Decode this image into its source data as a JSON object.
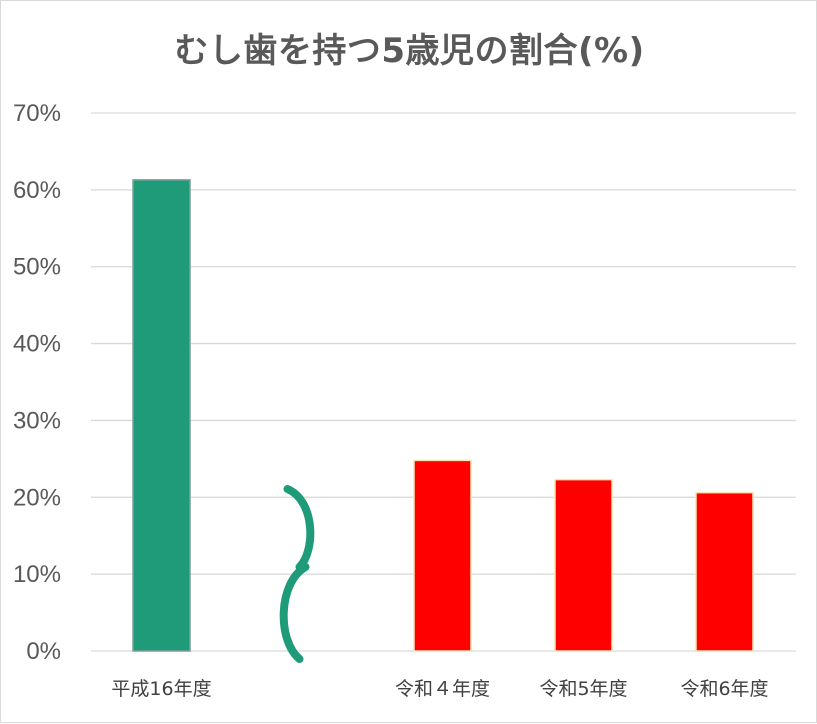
{
  "chart_data": {
    "type": "bar",
    "title": "むし歯を持つ5歳児の割合(%)",
    "xlabel": "",
    "ylabel": "",
    "ylim": [
      0,
      70
    ],
    "yticks": [
      0,
      10,
      20,
      30,
      40,
      50,
      60,
      70
    ],
    "ytick_labels": [
      "0%",
      "10%",
      "20%",
      "30%",
      "40%",
      "50%",
      "60%",
      "70%"
    ],
    "grid": true,
    "legend": "none",
    "axis_break_between": [
      "平成16年度",
      "令和４年度"
    ],
    "categories": [
      "平成16年度",
      "令和４年度",
      "令和5年度",
      "令和6年度"
    ],
    "values": [
      61.3,
      24.8,
      22.3,
      20.6
    ],
    "bar_colors": [
      "#1f9b7a",
      "#ff0000",
      "#ff0000",
      "#ff0000"
    ],
    "break_color": "#1f9b7a"
  }
}
